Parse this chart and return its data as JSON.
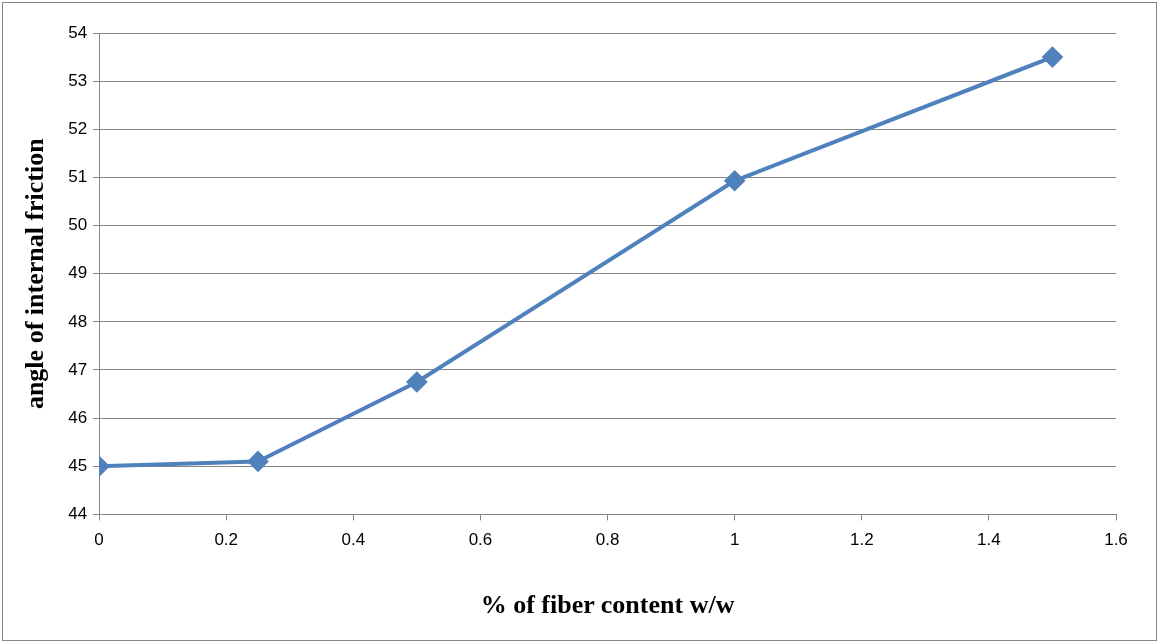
{
  "chart_data": {
    "type": "line",
    "xlabel": "% of fiber content w/w",
    "ylabel": "angle of internal friction",
    "x": [
      0,
      0.25,
      0.5,
      1,
      1.5
    ],
    "series": [
      {
        "color": "#4f81bd",
        "values": [
          45,
          45.1,
          46.75,
          50.93,
          53.5
        ]
      }
    ],
    "xlim": [
      0,
      1.6
    ],
    "xticks": [
      0,
      0.2,
      0.4,
      0.6,
      0.8,
      1,
      1.2,
      1.4,
      1.6
    ],
    "ylim": [
      44,
      54
    ],
    "yticks": [
      44,
      45,
      46,
      47,
      48,
      49,
      50,
      51,
      52,
      53,
      54
    ],
    "grid": "y",
    "legend": false,
    "marker": "diamond",
    "line_style": "solid"
  }
}
